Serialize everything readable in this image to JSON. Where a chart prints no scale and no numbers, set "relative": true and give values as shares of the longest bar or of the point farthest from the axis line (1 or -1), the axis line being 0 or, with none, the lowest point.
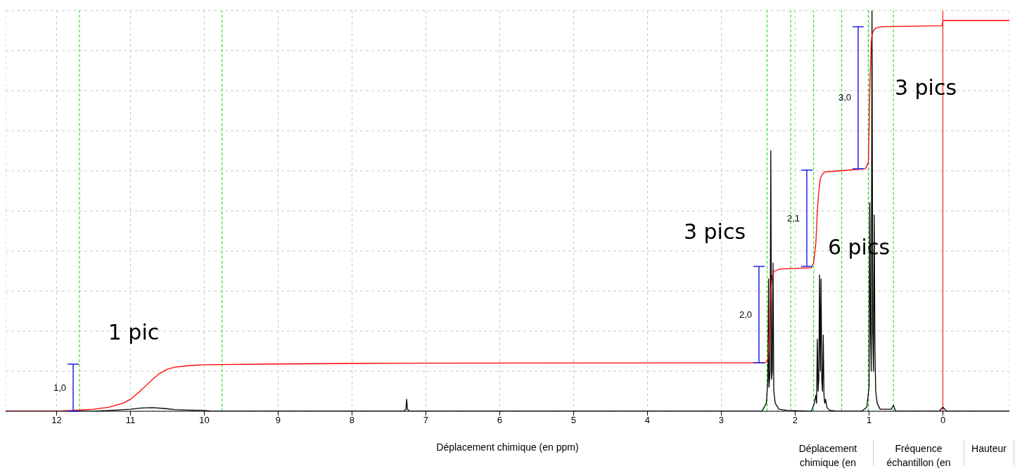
{
  "chart_data": {
    "type": "line",
    "xlabel": "Déplacement chimique (en ppm)",
    "relative": true,
    "xlim": [
      12.69,
      -0.9
    ],
    "xticks": [
      12,
      11,
      10,
      9,
      8,
      7,
      6,
      5,
      4,
      3,
      2,
      1,
      0
    ],
    "grid": true,
    "marker": "none",
    "line_style": "solid",
    "series": [
      {
        "color": "#000000",
        "x": [
          12.69,
          11.5,
          11.2,
          11.0,
          10.85,
          10.7,
          10.55,
          10.4,
          10.2,
          10.0,
          9.9,
          7.3,
          7.27,
          7.26,
          7.25,
          7.22,
          2.45,
          2.39,
          2.37,
          2.36,
          2.355,
          2.34,
          2.33,
          2.32,
          2.31,
          2.3,
          2.29,
          2.27,
          2.22,
          2.1,
          1.78,
          1.74,
          1.72,
          1.71,
          1.7,
          1.69,
          1.68,
          1.67,
          1.66,
          1.65,
          1.64,
          1.63,
          1.62,
          1.61,
          1.6,
          1.59,
          1.57,
          1.54,
          1.45,
          1.1,
          1.03,
          1.0,
          0.99,
          0.98,
          0.97,
          0.96,
          0.95,
          0.94,
          0.93,
          0.92,
          0.91,
          0.89,
          0.85,
          0.7,
          0.67,
          0.64,
          0.05,
          0.0,
          -0.05,
          -0.9
        ],
        "values": [
          0,
          0,
          0.003,
          0.005,
          0.008,
          0.009,
          0.007,
          0.004,
          0.003,
          0.002,
          0,
          0,
          0.005,
          0.03,
          0.005,
          0,
          0,
          0.02,
          0.08,
          0.33,
          0.06,
          0.1,
          0.65,
          0.08,
          0.1,
          0.37,
          0.05,
          0.02,
          0.005,
          0.002,
          0,
          0.02,
          0.04,
          0.02,
          0.18,
          0.05,
          0.08,
          0.34,
          0.1,
          0.33,
          0.08,
          0.05,
          0.19,
          0.04,
          0.02,
          0.03,
          0.01,
          0.003,
          0,
          0,
          0.01,
          0.06,
          0.52,
          0.2,
          0.1,
          1.0,
          0.2,
          0.1,
          0.49,
          0.15,
          0.05,
          0.02,
          0.005,
          0.005,
          0.015,
          0,
          0,
          0.01,
          0,
          0
        ]
      },
      {
        "color": "#ff0000",
        "x": [
          12.69,
          12.0,
          11.8,
          11.5,
          11.3,
          11.1,
          11.0,
          10.9,
          10.8,
          10.7,
          10.6,
          10.5,
          10.4,
          10.2,
          10.0,
          9.0,
          7.3,
          2.4,
          2.37,
          2.35,
          2.33,
          2.31,
          2.28,
          2.2,
          1.78,
          1.75,
          1.72,
          1.7,
          1.68,
          1.66,
          1.63,
          1.6,
          1.4,
          1.05,
          1.01,
          1.0,
          0.99,
          0.98,
          0.97,
          0.96,
          0.94,
          0.92,
          0.88,
          0.8,
          0.01,
          0.0,
          -0.9
        ],
        "values": [
          0,
          0,
          0.002,
          0.005,
          0.01,
          0.02,
          0.03,
          0.045,
          0.062,
          0.08,
          0.095,
          0.105,
          0.11,
          0.114,
          0.116,
          0.118,
          0.12,
          0.121,
          0.13,
          0.2,
          0.3,
          0.34,
          0.35,
          0.355,
          0.358,
          0.37,
          0.42,
          0.5,
          0.55,
          0.58,
          0.592,
          0.597,
          0.6,
          0.605,
          0.62,
          0.7,
          0.8,
          0.86,
          0.92,
          0.94,
          0.95,
          0.955,
          0.958,
          0.96,
          0.962,
          0.975,
          0.975
        ]
      }
    ],
    "ref_lines": [
      {
        "axis": "x",
        "value": 11.69,
        "color": "#00dd00",
        "line_style": "dashed"
      },
      {
        "axis": "x",
        "value": 9.76,
        "color": "#00dd00",
        "line_style": "dashed"
      },
      {
        "axis": "x",
        "value": 2.38,
        "color": "#00dd00",
        "line_style": "dashed"
      },
      {
        "axis": "x",
        "value": 2.06,
        "color": "#00dd00",
        "line_style": "dashed"
      },
      {
        "axis": "x",
        "value": 1.75,
        "color": "#00dd00",
        "line_style": "dashed"
      },
      {
        "axis": "x",
        "value": 1.37,
        "color": "#00dd00",
        "line_style": "dashed"
      },
      {
        "axis": "x",
        "value": 1.01,
        "color": "#00dd00",
        "line_style": "dashed"
      },
      {
        "axis": "x",
        "value": 0.67,
        "color": "#00dd00",
        "line_style": "dashed"
      },
      {
        "axis": "x",
        "value": 0,
        "color": "#ff0000",
        "line_style": "solid"
      }
    ],
    "annotations": [
      "1,0",
      "2,0",
      "2,1",
      "3,0",
      "1 pic",
      "3 pics",
      "6 pics",
      "3 pics",
      "Déplacement chimique (en",
      "Fréquence échantillon (en",
      "Hauteur"
    ]
  }
}
